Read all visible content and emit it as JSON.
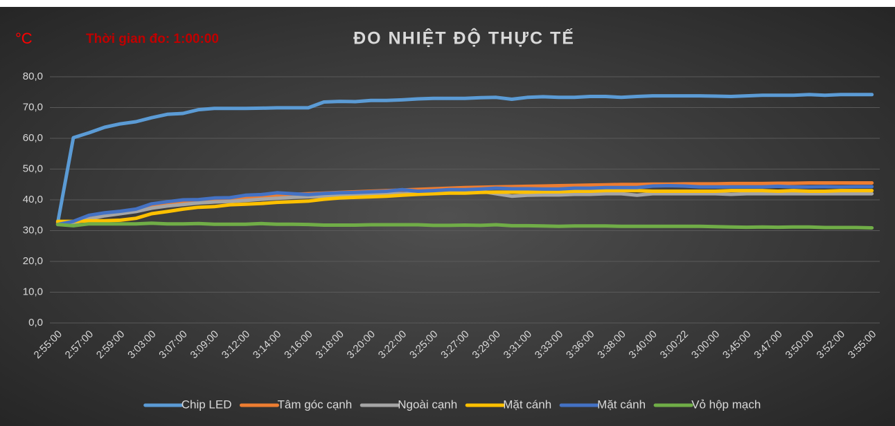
{
  "chart_data": {
    "type": "line",
    "title": "ĐO NHIỆT ĐỘ THỰC TẾ",
    "unit_label": "°C",
    "annotation": "Thời gian đo: 1:00:00",
    "categories": [
      "2:55:00",
      null,
      "2:57:00",
      null,
      "2:59:00",
      null,
      "3:03:00",
      null,
      "3:07:00",
      null,
      "3:09:00",
      null,
      "3:12:00",
      null,
      "3:14:00",
      null,
      "3:16:00",
      null,
      "3:18:00",
      null,
      "3:20:00",
      null,
      "3:22:00",
      null,
      "3:25:00",
      null,
      "3:27:00",
      null,
      "3:29:00",
      null,
      "3:31:00",
      null,
      "3:33:00",
      null,
      "3:36:00",
      null,
      "3:38:00",
      null,
      "3:40:00",
      null,
      "3:00:22",
      null,
      "3:00:00",
      null,
      "3:45:00",
      null,
      "3:47:00",
      null,
      "3:50:00",
      null,
      "3:52:00",
      null,
      "3:55:00"
    ],
    "series": [
      {
        "name": "Chip LED",
        "color": "#5b9bd5",
        "values": [
          32.5,
          60.2,
          61.8,
          63.6,
          64.7,
          65.4,
          66.7,
          67.8,
          68.1,
          69.3,
          69.7,
          69.7,
          69.7,
          69.8,
          69.9,
          69.9,
          69.9,
          71.8,
          72.0,
          71.9,
          72.3,
          72.3,
          72.5,
          72.8,
          73.0,
          73.0,
          73.0,
          73.2,
          73.3,
          72.7,
          73.3,
          73.5,
          73.3,
          73.3,
          73.6,
          73.6,
          73.3,
          73.6,
          73.8,
          73.8,
          73.8,
          73.8,
          73.7,
          73.6,
          73.8,
          74.0,
          74.0,
          74.0,
          74.2,
          74.0,
          74.2,
          74.2,
          74.2
        ]
      },
      {
        "name": "Tâm góc cạnh",
        "color": "#ed7d31",
        "values": [
          32.5,
          32.8,
          34.5,
          35.5,
          36,
          36.8,
          38,
          38.8,
          39.2,
          39.6,
          40,
          40.2,
          40.8,
          41.2,
          41.6,
          41.8,
          42,
          42.2,
          42.4,
          42.6,
          42.8,
          43,
          43.2,
          43.4,
          43.6,
          43.8,
          44,
          44.1,
          44.2,
          44.3,
          44.4,
          44.5,
          44.6,
          44.7,
          44.8,
          44.9,
          45,
          45,
          45.1,
          45.1,
          45.2,
          45.2,
          45.2,
          45.3,
          45.3,
          45.3,
          45.4,
          45.4,
          45.5,
          45.5,
          45.5,
          45.5,
          45.5
        ]
      },
      {
        "name": "Ngoài cạnh",
        "color": "#a5a5a5",
        "values": [
          32,
          32.5,
          33.8,
          34.8,
          35.5,
          36.2,
          37.3,
          38,
          38.5,
          39,
          39.3,
          39.5,
          39.8,
          40.2,
          40.5,
          40.8,
          41,
          41.2,
          41.4,
          41.6,
          41.8,
          42,
          42,
          42.2,
          42.4,
          42.6,
          42.6,
          42.8,
          42,
          41.2,
          41.5,
          41.6,
          41.6,
          41.8,
          41.8,
          42,
          42,
          41.5,
          42,
          42,
          42,
          42,
          42,
          41.8,
          42,
          42,
          42,
          42,
          42,
          42,
          42,
          42,
          42
        ]
      },
      {
        "name": "Mặt cánh",
        "color": "#ffc000",
        "values": [
          33,
          33,
          33.2,
          33.2,
          33.4,
          34,
          35.5,
          36.2,
          37,
          37.6,
          37.8,
          38.4,
          38.6,
          38.8,
          39.2,
          39.4,
          39.6,
          40.2,
          40.6,
          40.8,
          41,
          41.2,
          41.5,
          41.8,
          42,
          42.2,
          42.2,
          42.4,
          42.5,
          42.5,
          42.5,
          42.6,
          42.6,
          42.8,
          42.8,
          43,
          43,
          43,
          42.8,
          42.8,
          42.8,
          42.8,
          42.8,
          43,
          43,
          43,
          42.8,
          43,
          42.8,
          42.8,
          43,
          43,
          43
        ]
      },
      {
        "name": "Mặt cánh",
        "color": "#4472c4",
        "values": [
          32,
          33,
          35,
          35.8,
          36.3,
          37,
          38.7,
          39.4,
          40,
          40.1,
          40.6,
          40.7,
          41.5,
          41.7,
          42.3,
          42,
          41.7,
          42.1,
          42.3,
          42.4,
          42.6,
          42.8,
          43.3,
          42.8,
          43,
          43.3,
          43.3,
          43.5,
          43.8,
          43.6,
          43.6,
          43.5,
          43.5,
          43.8,
          43.8,
          44,
          44,
          44,
          44.5,
          44.6,
          44.5,
          44.2,
          44.2,
          44.2,
          44.2,
          44.2,
          44.4,
          44.2,
          44.2,
          44.3,
          44.2,
          44.3,
          44.3
        ]
      },
      {
        "name": "Vỏ hộp mạch",
        "color": "#70ad47",
        "values": [
          32,
          31.6,
          32.2,
          32.2,
          32.2,
          32.2,
          32.4,
          32.2,
          32.2,
          32.3,
          32.1,
          32.1,
          32.1,
          32.3,
          32.1,
          32.1,
          32,
          31.8,
          31.8,
          31.8,
          31.9,
          31.9,
          31.9,
          31.9,
          31.7,
          31.7,
          31.8,
          31.7,
          31.9,
          31.6,
          31.6,
          31.5,
          31.4,
          31.5,
          31.5,
          31.5,
          31.4,
          31.4,
          31.4,
          31.4,
          31.4,
          31.4,
          31.3,
          31.2,
          31.1,
          31.2,
          31.1,
          31.2,
          31.2,
          31,
          31,
          31,
          30.9
        ]
      }
    ],
    "ylim": [
      0,
      80
    ],
    "yticks": [
      {
        "value": 0,
        "label": "0,0"
      },
      {
        "value": 10,
        "label": "10,0"
      },
      {
        "value": 20,
        "label": "20,0"
      },
      {
        "value": 30,
        "label": "30,0"
      },
      {
        "value": 40,
        "label": "40,0"
      },
      {
        "value": 50,
        "label": "50,0"
      },
      {
        "value": 60,
        "label": "60,0"
      },
      {
        "value": 70,
        "label": "70,0"
      },
      {
        "value": 80,
        "label": "80,0"
      }
    ],
    "grid": true,
    "legend": "bottom"
  }
}
